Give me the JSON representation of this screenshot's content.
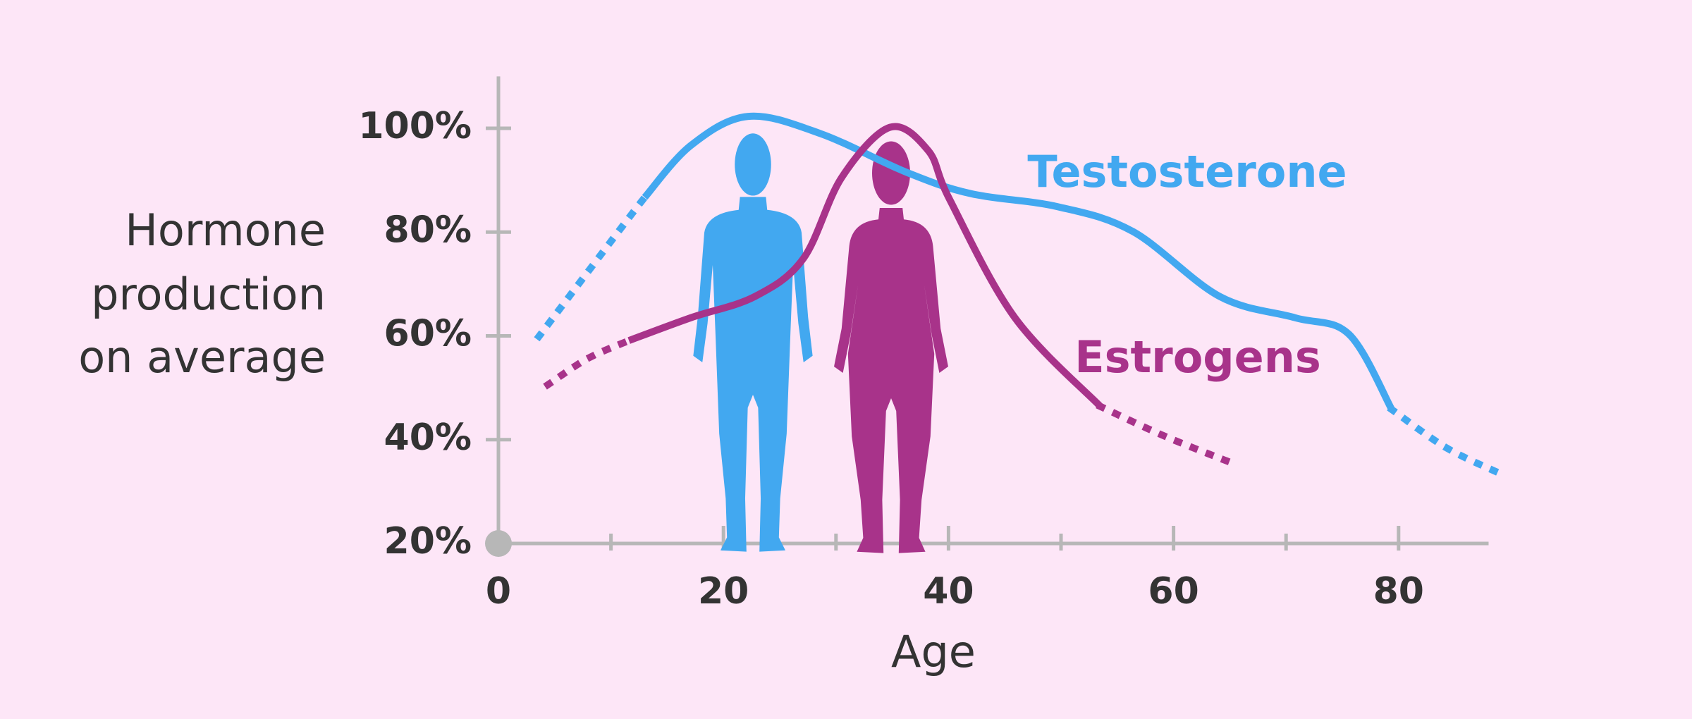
{
  "chart_data": {
    "type": "line",
    "ylabel": [
      "Hormone",
      "production",
      "on average"
    ],
    "xlabel": "Age",
    "xlim": [
      0,
      88
    ],
    "ylim": [
      20,
      110
    ],
    "xticks": [
      0,
      20,
      40,
      60,
      80
    ],
    "xminor_ticks": [
      10,
      30,
      50,
      70
    ],
    "yticks": [
      {
        "value": 20,
        "label": "20%"
      },
      {
        "value": 40,
        "label": "40%"
      },
      {
        "value": 60,
        "label": "60%"
      },
      {
        "value": 80,
        "label": "80%"
      },
      {
        "value": 100,
        "label": "100%"
      }
    ],
    "series": [
      {
        "name": "Testosterone",
        "color": "#42a8f0",
        "x": [
          3.6,
          10.8,
          13.0,
          17.1,
          22.2,
          28.6,
          36.3,
          42.0,
          49.7,
          56.4,
          64.1,
          70.8,
          75.6,
          79.4,
          84.2,
          88.8
        ],
        "values": [
          null,
          null,
          86.7,
          96.7,
          102.3,
          99.0,
          91.5,
          87.4,
          84.9,
          80.1,
          67.6,
          63.5,
          60.3,
          45.8,
          null,
          null
        ],
        "dotted_values": [
          59.9,
          80.5,
          86.7,
          null,
          null,
          null,
          null,
          null,
          null,
          null,
          null,
          null,
          null,
          45.8,
          38.5,
          33.7
        ]
      },
      {
        "name": "Estrogens",
        "color": "#a8338a",
        "x": [
          4.4,
          7.9,
          11.6,
          17.1,
          22.8,
          27.1,
          30.5,
          34.8,
          38.2,
          40.1,
          45.9,
          53.5,
          59.3,
          65.8
        ],
        "values": [
          null,
          null,
          59.1,
          63.5,
          67.6,
          74.9,
          90.5,
          100.2,
          95.7,
          86.3,
          63.5,
          46.4,
          null,
          null
        ],
        "dotted_values": [
          50.6,
          55.6,
          59.1,
          null,
          null,
          null,
          null,
          null,
          null,
          null,
          null,
          46.4,
          40.6,
          35.0
        ]
      }
    ]
  }
}
